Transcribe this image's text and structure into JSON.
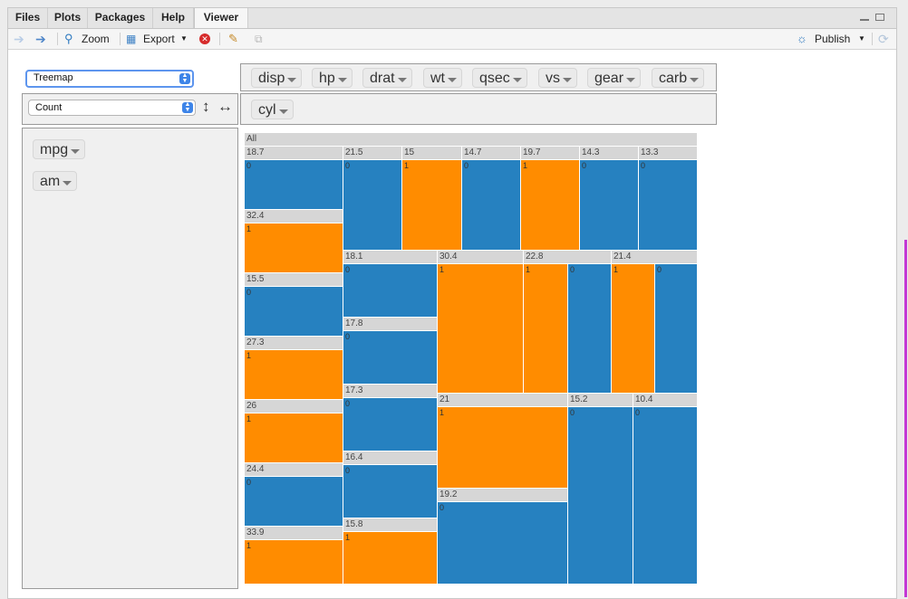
{
  "tabs": [
    {
      "label": "Files"
    },
    {
      "label": "Plots"
    },
    {
      "label": "Packages"
    },
    {
      "label": "Help"
    },
    {
      "label": "Viewer"
    }
  ],
  "toolbar": {
    "zoom_label": "Zoom",
    "export_label": "Export",
    "publish_label": "Publish"
  },
  "controls": {
    "renderer_value": "Treemap",
    "aggregator_value": "Count"
  },
  "fields": {
    "unused": [
      "disp",
      "hp",
      "drat",
      "wt",
      "qsec",
      "vs",
      "gear",
      "carb"
    ],
    "cols": [
      "cyl"
    ],
    "rows": [
      "mpg",
      "am"
    ]
  },
  "colors": {
    "am0": "#2681c0",
    "am1": "#ff8c00",
    "header": "#d6d6d6"
  },
  "treemap": {
    "root_label": "All",
    "nodes": [
      {
        "mpg": "18.7",
        "am": [
          "0"
        ]
      },
      {
        "mpg": "32.4",
        "am": [
          "1"
        ]
      },
      {
        "mpg": "15.5",
        "am": [
          "0"
        ]
      },
      {
        "mpg": "27.3",
        "am": [
          "1"
        ]
      },
      {
        "mpg": "26",
        "am": [
          "1"
        ]
      },
      {
        "mpg": "24.4",
        "am": [
          "0"
        ]
      },
      {
        "mpg": "33.9",
        "am": [
          "1"
        ]
      },
      {
        "mpg": "21.5",
        "am": [
          "0"
        ]
      },
      {
        "mpg": "18.1",
        "am": [
          "0"
        ]
      },
      {
        "mpg": "17.8",
        "am": [
          "0"
        ]
      },
      {
        "mpg": "17.3",
        "am": [
          "0"
        ]
      },
      {
        "mpg": "16.4",
        "am": [
          "0"
        ]
      },
      {
        "mpg": "15.8",
        "am": [
          "1"
        ]
      },
      {
        "mpg": "15",
        "am": [
          "1"
        ]
      },
      {
        "mpg": "14.7",
        "am": [
          "0"
        ]
      },
      {
        "mpg": "19.7",
        "am": [
          "1"
        ]
      },
      {
        "mpg": "14.3",
        "am": [
          "0"
        ]
      },
      {
        "mpg": "13.3",
        "am": [
          "0"
        ]
      },
      {
        "mpg": "30.4",
        "am": [
          "1"
        ]
      },
      {
        "mpg": "22.8",
        "am": [
          "1",
          "0"
        ]
      },
      {
        "mpg": "21.4",
        "am": [
          "1",
          "0"
        ]
      },
      {
        "mpg": "21",
        "am": [
          "1"
        ]
      },
      {
        "mpg": "19.2",
        "am": [
          "0"
        ]
      },
      {
        "mpg": "15.2",
        "am": [
          "0"
        ]
      },
      {
        "mpg": "10.4",
        "am": [
          "0"
        ]
      }
    ]
  }
}
